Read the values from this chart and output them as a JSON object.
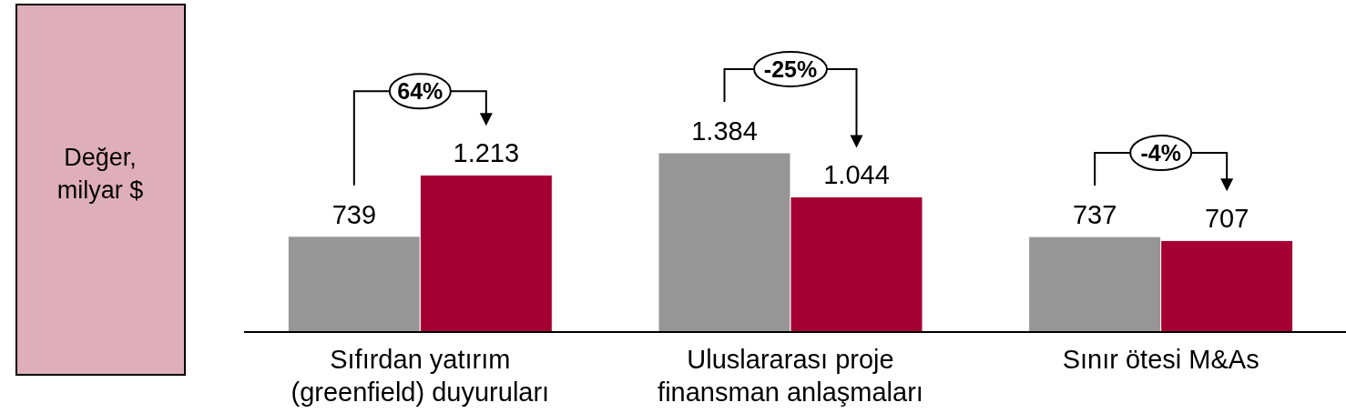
{
  "chart_data": {
    "type": "bar",
    "ylabel": "Değer, milyar $",
    "categories": [
      "Sıfırdan yatırım (greenfield) duyuruları",
      "Uluslararası proje finansman anlaşmaları",
      "Sınır ötesi M&As"
    ],
    "series": [
      {
        "color": "#969696",
        "values": [
          739,
          1384,
          737
        ],
        "value_labels": [
          "739",
          "1.384",
          "737"
        ]
      },
      {
        "color": "#a50034",
        "values": [
          1213,
          1044,
          707
        ],
        "value_labels": [
          "1.213",
          "1.044",
          "707"
        ]
      }
    ],
    "annotations": [
      "64%",
      "-25%",
      "-4%"
    ]
  }
}
